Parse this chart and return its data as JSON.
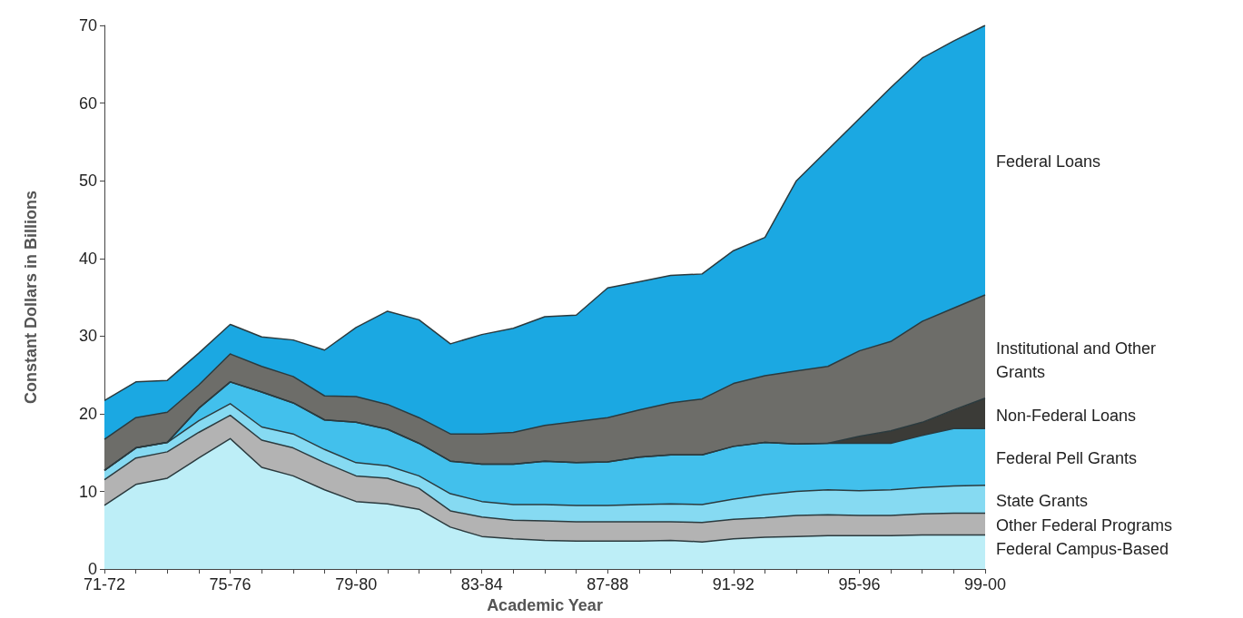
{
  "chart_data": {
    "type": "area",
    "stacked": true,
    "xlabel": "Academic Year",
    "ylabel": "Constant Dollars in Billions",
    "categories": [
      "71-72",
      null,
      null,
      null,
      "75-76",
      null,
      null,
      null,
      "79-80",
      null,
      null,
      null,
      "83-84",
      null,
      null,
      null,
      "87-88",
      null,
      null,
      null,
      "91-92",
      null,
      null,
      null,
      "95-96",
      null,
      null,
      null,
      "99-00"
    ],
    "ylim": [
      0,
      70
    ],
    "yticks": [
      0,
      10,
      20,
      30,
      40,
      50,
      60,
      70
    ],
    "grid": false,
    "legend": false,
    "series": [
      {
        "name": "Federal Campus-Based",
        "color": "#bdeef7",
        "values": [
          8.2,
          10.9,
          11.7,
          14.3,
          16.8,
          13.1,
          12.0,
          10.2,
          8.7,
          8.4,
          7.7,
          5.4,
          4.2,
          3.9,
          3.7,
          3.6,
          3.6,
          3.6,
          3.7,
          3.5,
          3.9,
          4.1,
          4.2,
          4.3,
          4.3,
          4.3,
          4.4,
          4.4,
          4.4
        ]
      },
      {
        "name": "Other Federal Programs",
        "color": "#b3b3b3",
        "values": [
          3.3,
          3.4,
          3.4,
          3.3,
          3.0,
          3.5,
          3.6,
          3.5,
          3.3,
          3.3,
          2.7,
          2.1,
          2.5,
          2.4,
          2.5,
          2.5,
          2.5,
          2.5,
          2.4,
          2.5,
          2.5,
          2.5,
          2.7,
          2.7,
          2.6,
          2.6,
          2.7,
          2.8,
          2.8
        ]
      },
      {
        "name": "State Grants",
        "color": "#86daf2",
        "values": [
          1.2,
          1.3,
          1.2,
          1.5,
          1.5,
          1.7,
          1.8,
          1.7,
          1.7,
          1.6,
          1.6,
          2.2,
          2.0,
          2.0,
          2.1,
          2.1,
          2.1,
          2.2,
          2.3,
          2.3,
          2.6,
          3.0,
          3.1,
          3.2,
          3.2,
          3.3,
          3.4,
          3.5,
          3.6
        ]
      },
      {
        "name": "Federal Pell Grants",
        "color": "#42c0ec",
        "values": [
          0,
          0,
          0,
          1.6,
          2.8,
          4.5,
          4.0,
          3.8,
          5.2,
          4.7,
          4.2,
          4.2,
          4.8,
          5.2,
          5.6,
          5.5,
          5.6,
          6.1,
          6.3,
          6.4,
          6.8,
          6.7,
          6.1,
          6.0,
          6.1,
          6.0,
          6.7,
          7.4,
          7.3
        ]
      },
      {
        "name": "Non-Federal Loans",
        "color": "#3b3b37",
        "values": [
          0,
          0,
          0,
          0,
          0,
          0,
          0,
          0,
          0,
          0,
          0,
          0,
          0,
          0,
          0,
          0,
          0,
          0,
          0,
          0,
          0,
          0,
          0,
          0,
          0.9,
          1.6,
          1.7,
          2.4,
          3.9
        ]
      },
      {
        "name": "Institutional and Other Grants",
        "color": "#6d6d69",
        "values": [
          4.0,
          3.9,
          3.9,
          3.0,
          3.6,
          3.3,
          3.4,
          3.1,
          3.3,
          3.2,
          3.3,
          3.5,
          3.9,
          4.1,
          4.6,
          5.3,
          5.7,
          6.1,
          6.7,
          7.2,
          8.1,
          8.6,
          9.4,
          9.9,
          11.0,
          11.5,
          13.0,
          13.1,
          13.3
        ]
      },
      {
        "name": "Federal Loans",
        "color": "#1ba8e2",
        "values": [
          5.0,
          4.6,
          4.1,
          4.1,
          3.8,
          3.8,
          4.7,
          5.9,
          8.9,
          12.0,
          12.6,
          11.6,
          12.8,
          13.4,
          14.0,
          13.7,
          16.7,
          16.5,
          16.4,
          16.1,
          17.1,
          17.8,
          24.5,
          27.9,
          29.9,
          32.7,
          33.9,
          34.4,
          34.7
        ]
      }
    ]
  }
}
